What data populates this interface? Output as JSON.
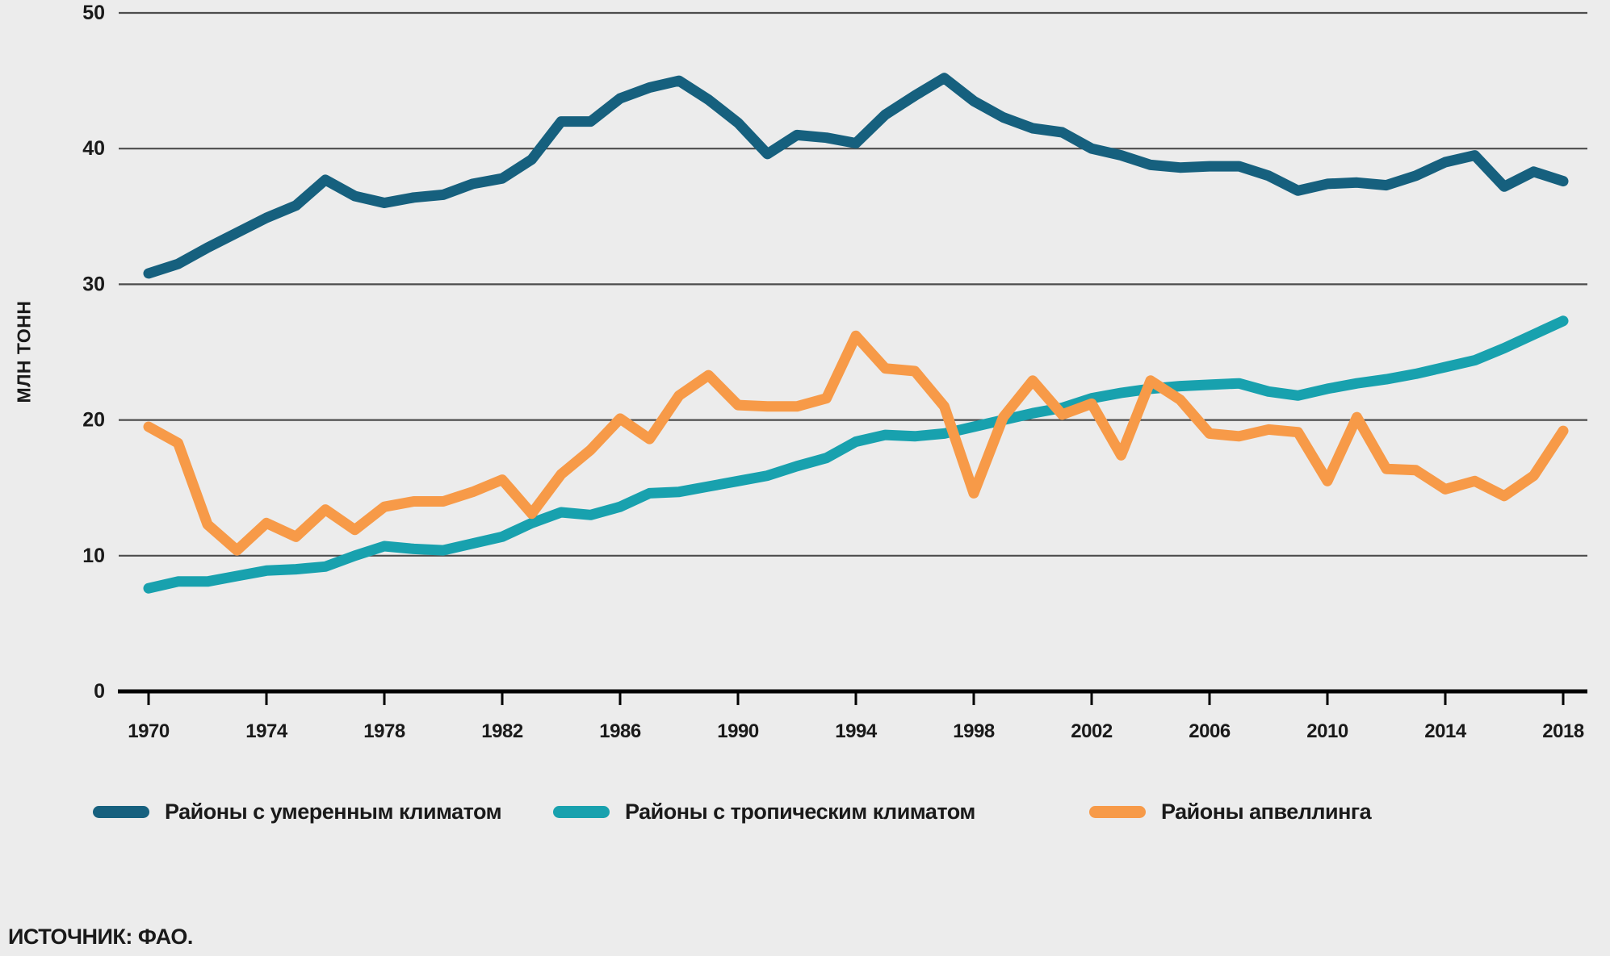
{
  "chart_data": {
    "type": "line",
    "title": "",
    "ylabel": "МЛН ТОНН",
    "xlabel": "",
    "ylim": [
      0,
      50
    ],
    "yticks": [
      0,
      10,
      20,
      30,
      40,
      50
    ],
    "xticks": [
      1970,
      1974,
      1978,
      1982,
      1986,
      1990,
      1994,
      1998,
      2002,
      2006,
      2010,
      2014,
      2018
    ],
    "grid": "horizontal",
    "legend_position": "bottom",
    "x": [
      1970,
      1971,
      1972,
      1973,
      1974,
      1975,
      1976,
      1977,
      1978,
      1979,
      1980,
      1981,
      1982,
      1983,
      1984,
      1985,
      1986,
      1987,
      1988,
      1989,
      1990,
      1991,
      1992,
      1993,
      1994,
      1995,
      1996,
      1997,
      1998,
      1999,
      2000,
      2001,
      2002,
      2003,
      2004,
      2005,
      2006,
      2007,
      2008,
      2009,
      2010,
      2011,
      2012,
      2013,
      2014,
      2015,
      2016,
      2017,
      2018
    ],
    "series": [
      {
        "name": "Районы с умеренным климатом",
        "color": "#16607E",
        "values": [
          30.8,
          31.5,
          32.7,
          33.8,
          34.9,
          35.8,
          37.7,
          36.5,
          36.0,
          36.4,
          36.6,
          37.4,
          37.8,
          39.2,
          42.0,
          42.0,
          43.7,
          44.5,
          45.0,
          43.6,
          41.9,
          39.6,
          41.0,
          40.8,
          40.4,
          42.5,
          43.9,
          45.2,
          43.5,
          42.3,
          41.5,
          41.2,
          40.0,
          39.5,
          38.8,
          38.6,
          38.7,
          38.7,
          38.0,
          36.9,
          37.4,
          37.5,
          37.3,
          38.0,
          39.0,
          39.5,
          37.2,
          38.3,
          37.6
        ]
      },
      {
        "name": "Районы с тропическим климатом",
        "color": "#18A1AE",
        "values": [
          7.6,
          8.1,
          8.1,
          8.5,
          8.9,
          9.0,
          9.2,
          10.0,
          10.7,
          10.5,
          10.4,
          10.9,
          11.4,
          12.4,
          13.2,
          13.0,
          13.6,
          14.6,
          14.7,
          15.1,
          15.5,
          15.9,
          16.6,
          17.2,
          18.4,
          18.9,
          18.8,
          19.0,
          19.5,
          20.0,
          20.5,
          20.9,
          21.6,
          22.0,
          22.3,
          22.5,
          22.6,
          22.7,
          22.1,
          21.8,
          22.3,
          22.7,
          23.0,
          23.4,
          23.9,
          24.4,
          25.3,
          26.3,
          27.3
        ]
      },
      {
        "name": "Районы апвеллинга",
        "color": "#F79A48",
        "values": [
          19.5,
          18.3,
          12.3,
          10.4,
          12.4,
          11.4,
          13.4,
          11.9,
          13.6,
          14.0,
          14.0,
          14.7,
          15.6,
          13.1,
          16.0,
          17.8,
          20.1,
          18.6,
          21.8,
          23.3,
          21.1,
          21.0,
          21.0,
          21.6,
          26.2,
          23.8,
          23.6,
          21.0,
          14.6,
          20.2,
          22.9,
          20.4,
          21.2,
          17.4,
          22.9,
          21.5,
          19.0,
          18.8,
          19.3,
          19.1,
          15.5,
          20.2,
          16.4,
          16.3,
          14.9,
          15.5,
          14.4,
          15.9,
          19.2
        ]
      }
    ]
  },
  "source": {
    "text": "ИСТОЧНИК: ФАО."
  },
  "colors": {
    "background": "#ECECEC",
    "gridline": "#4D4D4D",
    "axis": "#000000",
    "text": "#1A1A1A"
  }
}
